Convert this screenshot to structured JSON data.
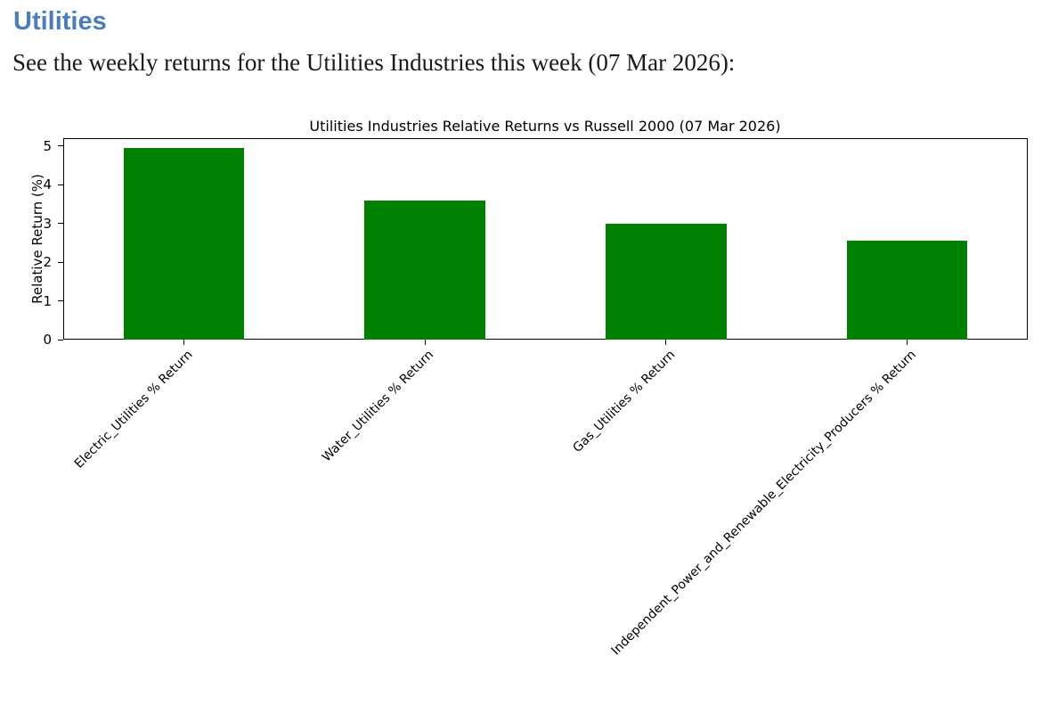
{
  "page": {
    "heading": "Utilities",
    "subtitle": "See the weekly returns for the Utilities Industries this week (07 Mar 2026):"
  },
  "colors": {
    "heading": "#4a7ebb",
    "bar": "#008000",
    "axis": "#000000"
  },
  "chart_data": {
    "type": "bar",
    "title": "Utilities Industries Relative Returns vs Russell 2000 (07 Mar 2026)",
    "xlabel": "",
    "ylabel": "Relative Return (%)",
    "categories": [
      "Electric_Utilities % Return",
      "Water_Utilities % Return",
      "Gas_Utilities % Return",
      "Independent_Power_and_Renewable_Electricity_Producers % Return"
    ],
    "values": [
      4.95,
      3.6,
      3.0,
      2.55
    ],
    "ylim": [
      0,
      5.2
    ],
    "yticks": [
      0,
      1,
      2,
      3,
      4,
      5
    ],
    "x_tick_rotation": 45,
    "grid": false,
    "legend": "none",
    "bar_width_fraction": 0.5
  }
}
